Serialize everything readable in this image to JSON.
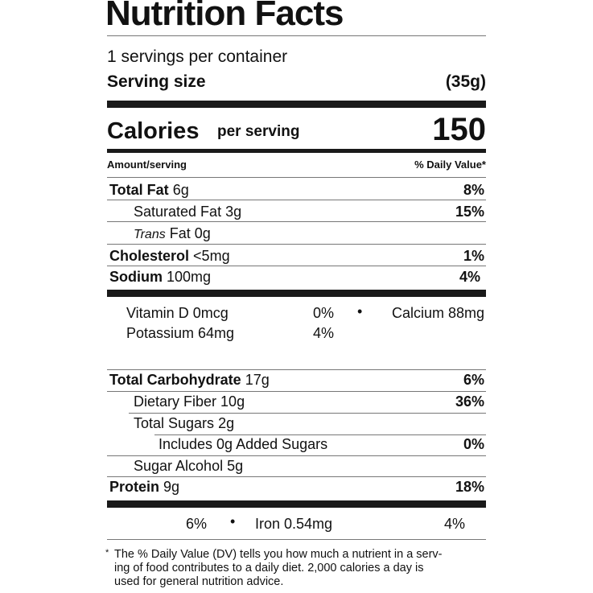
{
  "label": {
    "title": "Nutrition Facts",
    "servings_per_container": "1 servings per container",
    "serving_size_label": "Serving size",
    "serving_size_value": "(35g)",
    "calories_label": "Calories",
    "calories_per": "per serving",
    "calories_value": "150",
    "amount_header": "Amount/serving",
    "dv_header": "% Daily Value*",
    "nutrients": [
      {
        "name": "Total Fat",
        "amount": "6g",
        "dv": "8%"
      },
      {
        "name": "Saturated Fat",
        "amount": "3g",
        "dv": "15%"
      },
      {
        "name_italic": "Trans",
        "name": "Fat",
        "amount": "0g",
        "dv": ""
      },
      {
        "name": "Cholesterol",
        "amount": "<5mg",
        "dv": "1%"
      },
      {
        "name": "Sodium",
        "amount": "100mg",
        "dv": "4%"
      }
    ],
    "vitamins": [
      {
        "name": "Vitamin D 0mcg",
        "dv": "0%"
      },
      {
        "name": "Potassium 64mg",
        "dv": "4%"
      },
      {
        "name": "Calcium 88mg",
        "dv": "6%"
      },
      {
        "name": "Iron 0.54mg",
        "dv": "4%"
      }
    ],
    "carbs": [
      {
        "name": "Total Carbohydrate",
        "amount": "17g",
        "dv": "6%"
      },
      {
        "name": "Dietary Fiber",
        "amount": "10g",
        "dv": "36%"
      },
      {
        "name": "Total Sugars",
        "amount": "2g",
        "dv": ""
      },
      {
        "name": "Includes 0g Added Sugars",
        "amount": "",
        "dv": "0%"
      },
      {
        "name": "Sugar Alcohol",
        "amount": "5g",
        "dv": ""
      },
      {
        "name": "Protein",
        "amount": "9g",
        "dv": "18%"
      }
    ],
    "bullet": "•",
    "footnote_mark": "*",
    "footnote_lines": [
      "The % Daily Value (DV) tells you how much a nutrient in a serv-",
      "ing of food contributes to a daily diet. 2,000 calories a day is",
      "used for general nutrition advice."
    ]
  }
}
